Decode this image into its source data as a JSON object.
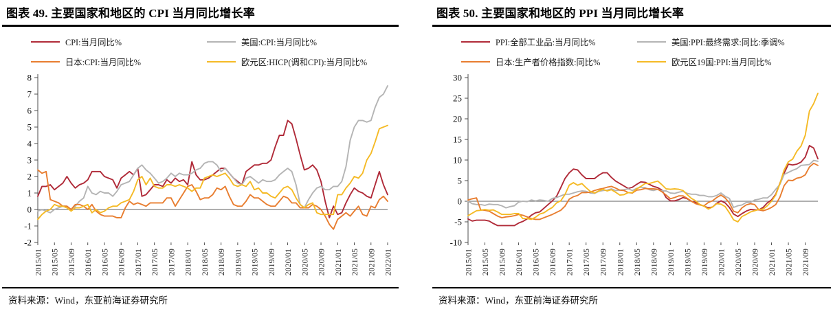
{
  "panels": [
    {
      "title": "图表 49. 主要国家和地区的 CPI 当月同比增长率",
      "source": "资料来源：Wind，东亚前海证券研究所",
      "chart_data": {
        "type": "line",
        "title": "主要国家和地区的CPI当月同比增长率",
        "ylim": [
          -2,
          8
        ],
        "ytick_step": 1,
        "x_tick_interval": 4,
        "grid": false,
        "legend_position": "top",
        "x_labels": [
          "2015/01",
          "2015/05",
          "2015/09",
          "2016/01",
          "2016/05",
          "2016/09",
          "2017/01",
          "2017/05",
          "2017/09",
          "2018/01",
          "2018/05",
          "2018/09",
          "2019/01",
          "2019/05",
          "2019/09",
          "2020/01",
          "2020/05",
          "2020/09",
          "2021/01",
          "2021/05",
          "2021/09",
          "2022/01"
        ],
        "series": [
          {
            "name": "CPI:当月同比%",
            "color": "#b02a38",
            "values": [
              0.8,
              1.4,
              1.4,
              1.5,
              1.2,
              1.4,
              1.6,
              2.0,
              1.6,
              1.3,
              1.5,
              1.6,
              1.8,
              2.3,
              2.3,
              2.3,
              2.0,
              1.9,
              1.8,
              1.3,
              1.9,
              2.1,
              2.3,
              2.1,
              2.5,
              0.8,
              0.9,
              1.2,
              1.5,
              1.5,
              1.4,
              1.8,
              1.6,
              1.9,
              1.7,
              1.8,
              1.5,
              2.9,
              2.1,
              1.8,
              1.8,
              1.9,
              2.1,
              2.3,
              2.5,
              2.5,
              2.2,
              1.9,
              1.7,
              1.5,
              2.3,
              2.5,
              2.7,
              2.7,
              2.8,
              2.8,
              3.0,
              3.8,
              4.5,
              4.5,
              5.4,
              5.2,
              4.3,
              3.3,
              2.4,
              2.5,
              2.7,
              2.4,
              1.7,
              0.5,
              -0.5,
              0.2,
              -0.3,
              -0.2,
              0.4,
              0.9,
              1.3,
              1.1,
              1.0,
              0.8,
              0.7,
              1.5,
              2.3,
              1.5,
              0.9
            ]
          },
          {
            "name": "美国:CPI:当月同比%",
            "color": "#b4b4b4",
            "values": [
              -0.1,
              0.0,
              -0.1,
              -0.2,
              0.0,
              0.1,
              0.2,
              0.2,
              0.0,
              0.2,
              0.5,
              0.7,
              1.4,
              1.0,
              0.9,
              1.1,
              1.0,
              1.0,
              0.8,
              1.1,
              1.5,
              1.6,
              1.7,
              2.1,
              2.5,
              2.7,
              2.4,
              2.2,
              1.9,
              1.6,
              1.7,
              1.9,
              2.2,
              2.0,
              2.2,
              2.1,
              2.1,
              2.2,
              2.4,
              2.5,
              2.8,
              2.9,
              2.9,
              2.7,
              2.3,
              2.5,
              2.2,
              1.9,
              1.6,
              1.5,
              1.9,
              2.0,
              1.8,
              1.6,
              1.8,
              1.7,
              1.7,
              1.8,
              2.1,
              2.3,
              2.5,
              2.3,
              1.5,
              0.3,
              0.1,
              0.6,
              1.0,
              1.3,
              1.4,
              1.2,
              1.2,
              1.4,
              1.4,
              1.7,
              2.6,
              4.2,
              5.0,
              5.4,
              5.4,
              5.3,
              5.4,
              6.2,
              6.8,
              7.0,
              7.5
            ]
          },
          {
            "name": "日本:CPI:当月同比%",
            "color": "#e87d2f",
            "values": [
              2.4,
              2.2,
              2.3,
              0.6,
              0.5,
              0.4,
              0.2,
              0.2,
              0.0,
              0.3,
              0.3,
              0.2,
              0.0,
              0.3,
              -0.1,
              -0.3,
              -0.4,
              -0.4,
              -0.4,
              -0.5,
              -0.5,
              0.1,
              0.5,
              0.3,
              0.4,
              0.3,
              0.2,
              0.4,
              0.4,
              0.4,
              0.4,
              0.7,
              0.7,
              0.2,
              0.6,
              1.0,
              1.4,
              1.5,
              1.1,
              0.6,
              0.7,
              0.7,
              0.9,
              1.3,
              1.2,
              1.4,
              0.8,
              0.3,
              0.2,
              0.2,
              0.5,
              0.9,
              0.7,
              0.7,
              0.5,
              0.3,
              0.2,
              0.2,
              0.5,
              0.8,
              0.7,
              0.4,
              0.4,
              0.1,
              0.1,
              0.1,
              0.3,
              0.2,
              0.0,
              -0.4,
              -0.9,
              -1.2,
              -0.6,
              -0.4,
              -0.2,
              -0.4,
              -0.1,
              0.2,
              -0.3,
              -0.4,
              0.2,
              0.1,
              0.6,
              0.8,
              0.5
            ]
          },
          {
            "name": "欧元区:HICP(调和CPI):当月同比%",
            "color": "#f5ba25",
            "values": [
              -0.6,
              -0.3,
              -0.1,
              0.0,
              0.3,
              0.2,
              0.2,
              0.1,
              -0.1,
              0.1,
              0.1,
              0.2,
              0.3,
              -0.2,
              0.0,
              -0.2,
              -0.1,
              0.1,
              0.2,
              0.2,
              0.4,
              0.5,
              0.6,
              1.1,
              1.8,
              2.0,
              1.5,
              1.9,
              1.4,
              1.3,
              1.3,
              1.5,
              1.5,
              1.4,
              1.5,
              1.4,
              1.3,
              1.1,
              1.3,
              1.3,
              1.9,
              2.0,
              2.1,
              2.0,
              2.1,
              2.2,
              1.9,
              1.5,
              1.4,
              1.5,
              1.4,
              1.7,
              1.2,
              1.3,
              1.0,
              1.0,
              0.8,
              0.7,
              1.0,
              1.3,
              1.4,
              1.2,
              0.7,
              0.3,
              0.1,
              0.3,
              0.4,
              -0.2,
              -0.3,
              -0.3,
              -0.3,
              -0.3,
              0.9,
              0.9,
              1.3,
              1.6,
              2.0,
              1.9,
              2.2,
              3.0,
              3.4,
              4.1,
              4.9,
              5.0,
              5.1
            ]
          }
        ]
      }
    },
    {
      "title": "图表 50. 主要国家和地区的 PPI 当月同比增长率",
      "source": "资料来源：Wind，东亚前海证券研究所",
      "chart_data": {
        "type": "line",
        "title": "主要国家和地区的PPI当月同比增长率",
        "ylim": [
          -10,
          30
        ],
        "ytick_step": 5,
        "x_tick_interval": 4,
        "grid": false,
        "legend_position": "top",
        "x_labels": [
          "2015/01",
          "2015/05",
          "2015/09",
          "2016/01",
          "2016/05",
          "2016/09",
          "2017/01",
          "2017/05",
          "2017/09",
          "2018/01",
          "2018/05",
          "2018/09",
          "2019/01",
          "2019/05",
          "2019/09",
          "2020/01",
          "2020/05",
          "2020/09",
          "2021/01",
          "2021/05",
          "2021/09"
        ],
        "series": [
          {
            "name": "PPI:全部工业品:当月同比%",
            "color": "#b02a38",
            "values": [
              -4.3,
              -4.8,
              -4.6,
              -4.6,
              -4.6,
              -4.8,
              -5.4,
              -5.9,
              -5.9,
              -5.9,
              -5.9,
              -5.9,
              -5.3,
              -4.9,
              -4.3,
              -3.4,
              -2.8,
              -2.6,
              -1.7,
              -0.8,
              0.1,
              1.2,
              3.3,
              5.5,
              6.9,
              7.8,
              7.6,
              6.4,
              5.5,
              5.5,
              5.5,
              6.3,
              6.9,
              6.9,
              5.8,
              4.9,
              4.3,
              3.7,
              3.1,
              3.4,
              4.1,
              4.7,
              4.6,
              4.1,
              3.6,
              3.3,
              2.7,
              0.9,
              0.1,
              0.1,
              0.4,
              0.9,
              0.6,
              0.0,
              -0.3,
              -0.8,
              -1.2,
              -1.6,
              -1.4,
              -0.5,
              0.1,
              -0.4,
              -1.5,
              -3.1,
              -3.7,
              -3.0,
              -2.4,
              -2.0,
              -2.1,
              -2.1,
              -1.5,
              -0.4,
              0.3,
              1.7,
              4.4,
              6.8,
              9.0,
              8.8,
              9.0,
              9.5,
              10.7,
              13.5,
              12.9,
              10.3
            ]
          },
          {
            "name": "美国:PPI:最终需求:同比:季调%",
            "color": "#b4b4b4",
            "values": [
              0.0,
              -0.6,
              -0.8,
              -0.8,
              -1.0,
              -0.7,
              -0.8,
              -0.8,
              -1.1,
              -1.6,
              -1.3,
              -1.1,
              -0.2,
              0.0,
              -0.1,
              0.3,
              0.1,
              0.3,
              0.2,
              0.0,
              0.7,
              0.9,
              1.3,
              1.7,
              1.7,
              2.0,
              2.3,
              2.5,
              2.4,
              2.0,
              1.9,
              2.4,
              2.6,
              2.7,
              3.0,
              2.6,
              2.7,
              2.8,
              3.0,
              2.6,
              3.1,
              3.4,
              3.3,
              2.8,
              2.6,
              2.9,
              2.5,
              2.5,
              2.0,
              1.9,
              2.2,
              2.4,
              1.9,
              1.7,
              1.7,
              1.4,
              1.4,
              1.1,
              1.1,
              1.4,
              2.0,
              1.2,
              0.7,
              -1.5,
              -1.1,
              -0.9,
              -0.3,
              -0.3,
              0.3,
              0.5,
              0.8,
              0.8,
              1.6,
              2.9,
              4.1,
              6.5,
              7.0,
              7.5,
              7.9,
              8.7,
              8.8,
              8.9,
              9.9,
              9.7
            ]
          },
          {
            "name": "日本:生产者价格指数:同比%",
            "color": "#e87d2f",
            "values": [
              0.3,
              0.6,
              0.8,
              -2.1,
              -2.2,
              -2.4,
              -3.0,
              -3.6,
              -4.0,
              -3.8,
              -3.7,
              -3.5,
              -3.2,
              -3.4,
              -3.8,
              -4.2,
              -4.4,
              -4.4,
              -4.0,
              -3.6,
              -3.2,
              -2.7,
              -2.2,
              -1.2,
              0.5,
              1.1,
              1.4,
              2.1,
              2.1,
              2.2,
              2.6,
              2.9,
              3.1,
              3.4,
              3.6,
              3.2,
              2.7,
              2.6,
              2.1,
              2.0,
              2.7,
              2.8,
              3.1,
              3.0,
              3.0,
              2.9,
              2.3,
              1.5,
              0.6,
              0.9,
              1.3,
              1.3,
              0.7,
              0.0,
              -0.6,
              -0.9,
              -1.1,
              -0.3,
              0.1,
              0.9,
              1.5,
              0.8,
              -0.4,
              -2.4,
              -2.8,
              -1.6,
              -0.9,
              -0.6,
              -0.8,
              -2.1,
              -2.3,
              -2.0,
              -1.5,
              -0.8,
              1.0,
              3.8,
              5.1,
              5.0,
              5.6,
              5.8,
              6.4,
              8.3,
              9.2,
              8.7
            ]
          },
          {
            "name": "欧元区19国:PPI:当月同比%",
            "color": "#f5ba25",
            "values": [
              -3.5,
              -2.9,
              -2.3,
              -2.2,
              -2.0,
              -2.2,
              -2.1,
              -2.6,
              -3.2,
              -3.2,
              -3.2,
              -3.0,
              -3.0,
              -4.2,
              -4.2,
              -4.4,
              -3.9,
              -3.1,
              -2.8,
              -2.1,
              -1.5,
              -0.4,
              0.1,
              1.6,
              3.9,
              4.5,
              3.9,
              4.3,
              3.3,
              2.4,
              2.0,
              2.5,
              2.9,
              2.5,
              2.8,
              2.2,
              1.5,
              1.6,
              2.1,
              2.1,
              3.0,
              3.6,
              4.3,
              4.3,
              4.6,
              4.9,
              4.0,
              3.0,
              2.9,
              3.0,
              2.9,
              2.6,
              1.6,
              0.7,
              0.1,
              -0.8,
              -1.2,
              -1.9,
              -1.4,
              -0.6,
              -0.7,
              -1.3,
              -2.8,
              -4.5,
              -5.0,
              -3.7,
              -3.2,
              -2.6,
              -2.3,
              -2.0,
              -1.9,
              -1.1,
              0.0,
              1.5,
              4.3,
              7.6,
              9.6,
              10.2,
              12.1,
              13.4,
              16.0,
              21.9,
              23.7,
              26.2
            ]
          }
        ]
      }
    }
  ]
}
